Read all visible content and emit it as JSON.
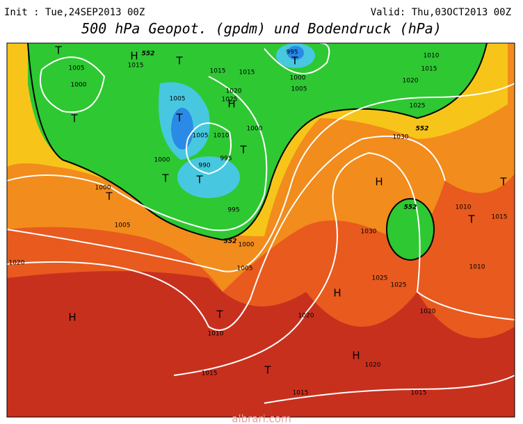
{
  "header": {
    "init": "Init : Tue,24SEP2013 00Z",
    "valid": "Valid: Thu,03OCT2013 00Z",
    "title": "500 hPa Geopot. (gpdm) und Bodendruck (hPa)"
  },
  "isobar_labels": [
    1005,
    1000,
    1015,
    1015,
    1015,
    995,
    1000,
    1005,
    1010,
    1015,
    1020,
    1025,
    1030,
    1005,
    1020,
    1025,
    1005,
    1010,
    1000,
    995,
    990,
    1000,
    1000,
    1005,
    995,
    1000,
    1005,
    1020,
    1010,
    1015,
    1020,
    1030,
    1025,
    1025,
    1020,
    1020,
    1015,
    1015,
    1010,
    1015,
    1010
  ],
  "pressure_centers": [
    "T",
    "H",
    "T",
    "T",
    "T",
    "H",
    "T",
    "T",
    "T",
    "T",
    "H",
    "T",
    "T",
    "H",
    "T",
    "H",
    "H",
    "T",
    "T"
  ],
  "contour_labels": [
    "552",
    "552",
    "552",
    "552"
  ],
  "watermark": "albrari.com"
}
